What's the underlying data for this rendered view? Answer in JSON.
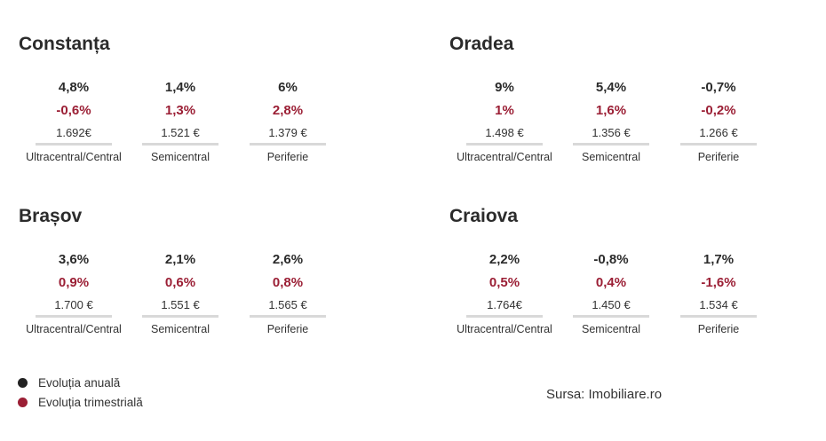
{
  "chart_data": {
    "type": "table",
    "columns": [
      "Ultracentral/Central",
      "Semicentral",
      "Periferie"
    ],
    "cities": [
      {
        "name": "Constanța",
        "cols": [
          {
            "annual": "4,8%",
            "quarterly": "-0,6%",
            "price": "1.692€",
            "label": "Ultracentral/Central"
          },
          {
            "annual": "1,4%",
            "quarterly": "1,3%",
            "price": "1.521 €",
            "label": "Semicentral"
          },
          {
            "annual": "6%",
            "quarterly": "2,8%",
            "price": "1.379 €",
            "label": "Periferie"
          }
        ]
      },
      {
        "name": "Oradea",
        "cols": [
          {
            "annual": "9%",
            "quarterly": "1%",
            "price": "1.498 €",
            "label": "Ultracentral/Central"
          },
          {
            "annual": "5,4%",
            "quarterly": "1,6%",
            "price": "1.356 €",
            "label": "Semicentral"
          },
          {
            "annual": "-0,7%",
            "quarterly": "-0,2%",
            "price": "1.266 €",
            "label": "Periferie"
          }
        ]
      },
      {
        "name": "Brașov",
        "cols": [
          {
            "annual": "3,6%",
            "quarterly": "0,9%",
            "price": "1.700 €",
            "label": "Ultracentral/Central"
          },
          {
            "annual": "2,1%",
            "quarterly": "0,6%",
            "price": "1.551 €",
            "label": "Semicentral"
          },
          {
            "annual": "2,6%",
            "quarterly": "0,8%",
            "price": "1.565 €",
            "label": "Periferie"
          }
        ]
      },
      {
        "name": "Craiova",
        "cols": [
          {
            "annual": "2,2%",
            "quarterly": "0,5%",
            "price": "1.764€",
            "label": "Ultracentral/Central"
          },
          {
            "annual": "-0,8%",
            "quarterly": "0,4%",
            "price": "1.450 €",
            "label": "Semicentral"
          },
          {
            "annual": "1,7%",
            "quarterly": "-1,6%",
            "price": "1.534 €",
            "label": "Periferie"
          }
        ]
      }
    ]
  },
  "legend": [
    {
      "label": "Evoluția anuală",
      "color": "#222222"
    },
    {
      "label": "Evoluția trimestrială",
      "color": "#9b1f35"
    }
  ],
  "source": "Sursa: Imobiliare.ro",
  "colors": {
    "annual": "#2b2b2b",
    "quarterly": "#9b1f35"
  }
}
